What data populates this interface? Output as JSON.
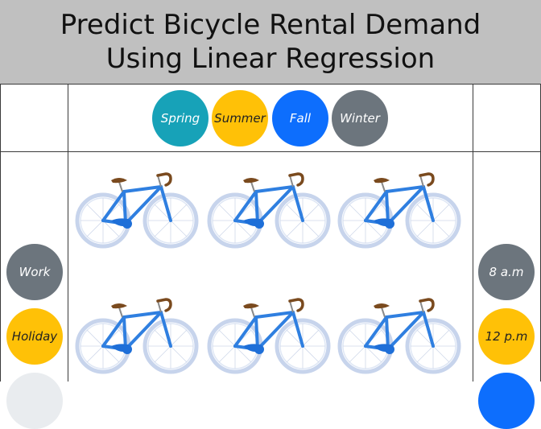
{
  "header": {
    "title_line1": "Predict Bicycle Rental Demand",
    "title_line2": "Using Linear Regression"
  },
  "seasons": [
    {
      "label": "Spring",
      "color": "#17a2b8",
      "text_color": "#ffffff"
    },
    {
      "label": "Summer",
      "color": "#ffc107",
      "text_color": "#222222"
    },
    {
      "label": "Fall",
      "color": "#0d6efd",
      "text_color": "#ffffff"
    },
    {
      "label": "Winter",
      "color": "#6c757d",
      "text_color": "#ffffff"
    }
  ],
  "day_types": [
    {
      "label": "Work",
      "color": "#6c757d",
      "text_color": "#ffffff"
    },
    {
      "label": "Holiday",
      "color": "#ffc107",
      "text_color": "#222222"
    },
    {
      "label": "",
      "color": "#e9ecef",
      "text_color": "#222222"
    }
  ],
  "times": [
    {
      "label": "8 a.m",
      "color": "#6c757d",
      "text_color": "#ffffff"
    },
    {
      "label": "12 p.m",
      "color": "#ffc107",
      "text_color": "#222222"
    },
    {
      "label": "",
      "color": "#0d6efd",
      "text_color": "#ffffff"
    }
  ],
  "bike_icon": "bicycle-icon",
  "colors": {
    "header_bg": "#c0c0c0",
    "bike_frame": "#2f7fe0",
    "bike_wheel": "#b9c9e6",
    "saddle": "#7a4a1e"
  }
}
